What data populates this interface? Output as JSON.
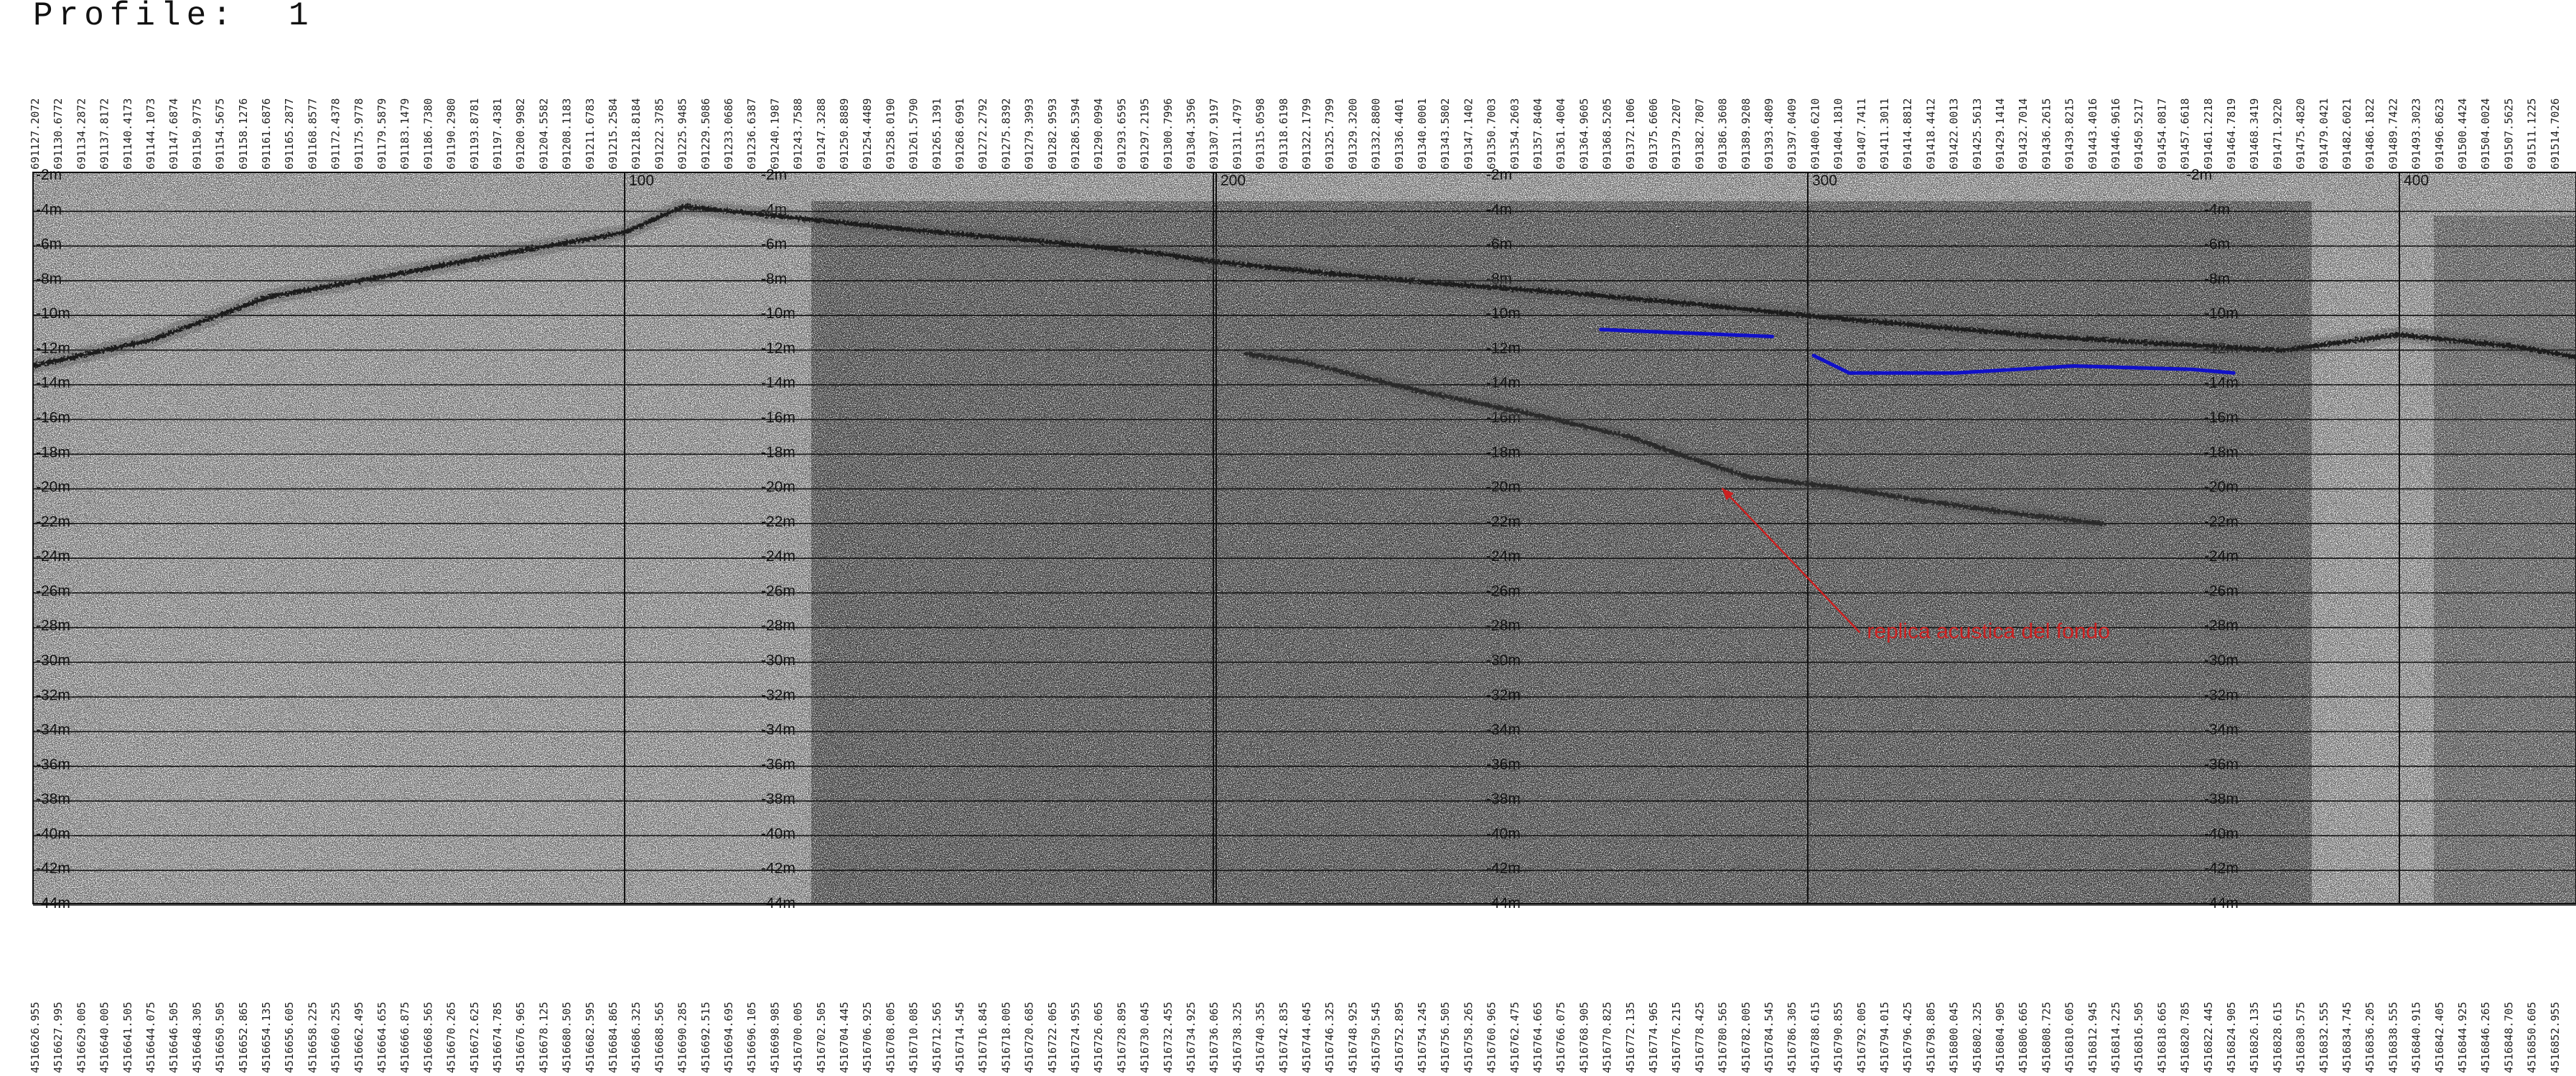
{
  "title": "Profile:  1",
  "chart_data": {
    "type": "line",
    "title": "Profile:  1",
    "x_axis": {
      "ticks": [
        100,
        200,
        300,
        400
      ],
      "unit": ""
    },
    "y_axis": {
      "ticks": [
        -2,
        -4,
        -6,
        -8,
        -10,
        -12,
        -14,
        -16,
        -18,
        -20,
        -22,
        -24,
        -26,
        -28,
        -30,
        -32,
        -34,
        -36,
        -38,
        -40,
        -42,
        -44
      ],
      "tick_format": "{v}m",
      "range": [
        -2,
        -44
      ],
      "unit": "m"
    },
    "grid": true,
    "series": [
      {
        "color": "#1a1a1a",
        "x": [
          0,
          20,
          40,
          60,
          80,
          100,
          110,
          130,
          150,
          170,
          190,
          200,
          220,
          240,
          260,
          280,
          300,
          320,
          340,
          360,
          380,
          400,
          420,
          440,
          460,
          480
        ],
        "y": [
          -12.5,
          -11,
          -8.5,
          -7.3,
          -6,
          -4.8,
          -3.3,
          -4.0,
          -4.7,
          -5.3,
          -6.0,
          -6.5,
          -7.2,
          -7.8,
          -8.3,
          -8.9,
          -9.6,
          -10.2,
          -10.8,
          -11.2,
          -11.6,
          -10.7,
          -11.4,
          -12.6,
          -13.7,
          -15.0
        ]
      },
      {
        "color": "#2a2a2a",
        "x": [
          205,
          215,
          235,
          255,
          270,
          280,
          290,
          305,
          320,
          335,
          350
        ],
        "y": [
          -11.8,
          -12.3,
          -14.0,
          -15.4,
          -16.6,
          -17.8,
          -18.9,
          -19.5,
          -20.3,
          -21.0,
          -21.6
        ]
      },
      {
        "color": "#1010c8",
        "x": [
          265,
          294
        ],
        "y": [
          -10.4,
          -10.8
        ]
      },
      {
        "color": "#1010c8",
        "x": [
          301,
          307,
          325,
          345,
          365,
          372
        ],
        "y": [
          -11.9,
          -12.9,
          -12.9,
          -12.5,
          -12.7,
          -12.9
        ]
      }
    ],
    "annotations": [
      {
        "text": "replica acustica del fondo",
        "color": "#cc2020",
        "arrow_to": {
          "x": 285,
          "y": -19.3
        },
        "label_at": {
          "x": 310,
          "y": -27.7
        }
      }
    ],
    "top_labels": [
      "691127.2072",
      "691130.6772",
      "691134.2872",
      "691137.8172",
      "691140.4173",
      "691144.1073",
      "691147.6874",
      "691150.9775",
      "691154.5675",
      "691158.1276",
      "691161.6876",
      "691165.2877",
      "691168.8577",
      "691172.4378",
      "691175.9778",
      "691179.5879",
      "691183.1479",
      "691186.7380",
      "691190.2980",
      "691193.8781",
      "691197.4381",
      "691200.9982",
      "691204.5582",
      "691208.1183",
      "691211.6783",
      "691215.2584",
      "691218.8184",
      "691222.3785",
      "691225.9485",
      "691229.5086",
      "691233.0686",
      "691236.6387",
      "691240.1987",
      "691243.7588",
      "691247.3288",
      "691250.8889",
      "691254.4489",
      "691258.0190",
      "691261.5790",
      "691265.1391",
      "691268.6991",
      "691272.2792",
      "691275.8392",
      "691279.3993",
      "691282.9593",
      "691286.5394",
      "691290.0994",
      "691293.6595",
      "691297.2195",
      "691300.7996",
      "691304.3596",
      "691307.9197",
      "691311.4797",
      "691315.0598",
      "691318.6198",
      "691322.1799",
      "691325.7399",
      "691329.3200",
      "691332.8800",
      "691336.4401",
      "691340.0001",
      "691343.5802",
      "691347.1402",
      "691350.7003",
      "691354.2603",
      "691357.8404",
      "691361.4004",
      "691364.9605",
      "691368.5205",
      "691372.1006",
      "691375.6606",
      "691379.2207",
      "691382.7807",
      "691386.3608",
      "691389.9208",
      "691393.4809",
      "691397.0409",
      "691400.6210",
      "691404.1810",
      "691407.7411",
      "691411.3011",
      "691414.8812",
      "691418.4412",
      "691422.0013",
      "691425.5613",
      "691429.1414",
      "691432.7014",
      "691436.2615",
      "691439.8215",
      "691443.4016",
      "691446.9616",
      "691450.5217",
      "691454.0817",
      "691457.6618",
      "691461.2218",
      "691464.7819",
      "691468.3419",
      "691471.9220",
      "691475.4820",
      "691479.0421",
      "691482.6021",
      "691486.1822",
      "691489.7422",
      "691493.3023",
      "691496.8623",
      "691500.4424",
      "691504.0024",
      "691507.5625",
      "691511.1225",
      "691514.7026"
    ],
    "bottom_labels": [
      "4516626.955",
      "4516627.995",
      "4516629.005",
      "4516640.005",
      "4516641.505",
      "4516644.075",
      "4516646.505",
      "4516648.305",
      "4516650.505",
      "4516652.865",
      "4516654.135",
      "4516656.605",
      "4516658.225",
      "4516660.255",
      "4516662.495",
      "4516664.655",
      "4516666.875",
      "4516668.565",
      "4516670.265",
      "4516672.625",
      "4516674.785",
      "4516676.965",
      "4516678.125",
      "4516680.505",
      "4516682.595",
      "4516684.865",
      "4516686.325",
      "4516688.565",
      "4516690.285",
      "4516692.515",
      "4516694.695",
      "4516696.105",
      "4516698.985",
      "4516700.005",
      "4516702.505",
      "4516704.445",
      "4516706.925",
      "4516708.005",
      "4516710.085",
      "4516712.565",
      "4516714.545",
      "4516716.845",
      "4516718.005",
      "4516720.685",
      "4516722.065",
      "4516724.955",
      "4516726.065",
      "4516728.895",
      "4516730.045",
      "4516732.455",
      "4516734.925",
      "4516736.065",
      "4516738.325",
      "4516740.355",
      "4516742.835",
      "4516744.045",
      "4516746.325",
      "4516748.925",
      "4516750.545",
      "4516752.895",
      "4516754.245",
      "4516756.505",
      "4516758.265",
      "4516760.965",
      "4516762.475",
      "4516764.665",
      "4516766.075",
      "4516768.905",
      "4516770.825",
      "4516772.135",
      "4516774.965",
      "4516776.215",
      "4516778.425",
      "4516780.565",
      "4516782.005",
      "4516784.545",
      "4516786.305",
      "4516788.615",
      "4516790.855",
      "4516792.005",
      "4516794.015",
      "4516796.425",
      "4516798.805",
      "4516800.045",
      "4516802.325",
      "4516804.905",
      "4516806.665",
      "4516808.725",
      "4516810.605",
      "4516812.945",
      "4516814.225",
      "4516816.505",
      "4516818.665",
      "4516820.785",
      "4516822.445",
      "4516824.905",
      "4516826.135",
      "4516828.615",
      "4516830.575",
      "4516832.555",
      "4516834.745",
      "4516836.205",
      "4516838.555",
      "4516840.915",
      "4516842.405",
      "4516844.925",
      "4516846.265",
      "4516848.705",
      "4516850.605",
      "4516852.955"
    ]
  }
}
